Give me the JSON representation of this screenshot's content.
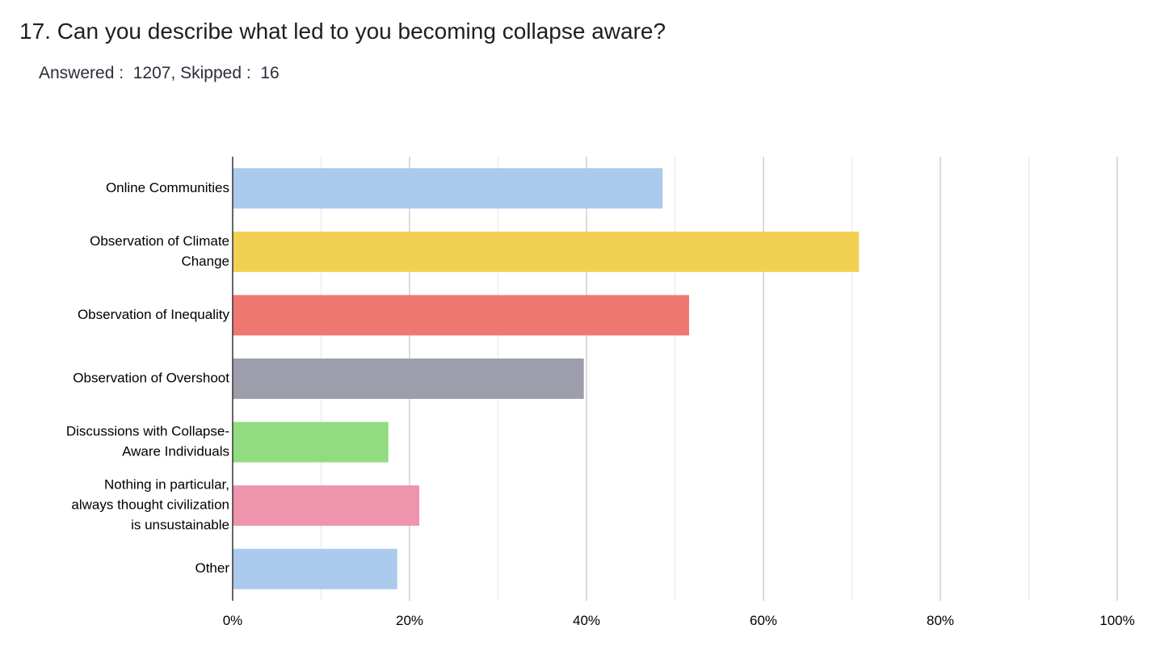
{
  "question": {
    "title": "17. Can you describe what led to you becoming collapse aware?",
    "answered_label": "Answered :",
    "answered_value": "1207",
    "skipped_label": "Skipped :",
    "skipped_value": "16"
  },
  "chart_data": {
    "type": "bar",
    "orientation": "horizontal",
    "categories": [
      [
        "Online Communities"
      ],
      [
        "Observation of Climate",
        "Change"
      ],
      [
        "Observation of Inequality"
      ],
      [
        "Observation of Overshoot"
      ],
      [
        "Discussions with Collapse-",
        "Aware Individuals"
      ],
      [
        "Nothing in particular,",
        "always thought civilization",
        "is unsustainable"
      ],
      [
        "Other"
      ]
    ],
    "values": [
      48.6,
      70.8,
      51.6,
      39.7,
      17.6,
      21.1,
      18.6
    ],
    "colors": [
      "#abcaee",
      "#f2d152",
      "#ee786f",
      "#9d9eab",
      "#91dc80",
      "#ee94ac",
      "#abcaee"
    ],
    "xlim": [
      0,
      100
    ],
    "x_ticks": [
      "0%",
      "20%",
      "40%",
      "60%",
      "80%",
      "100%"
    ],
    "x_tick_values": [
      0,
      20,
      40,
      60,
      80,
      100
    ],
    "minor_grid_values": [
      10,
      30,
      50,
      70,
      90
    ],
    "grid": true,
    "xlabel": "",
    "ylabel": ""
  }
}
